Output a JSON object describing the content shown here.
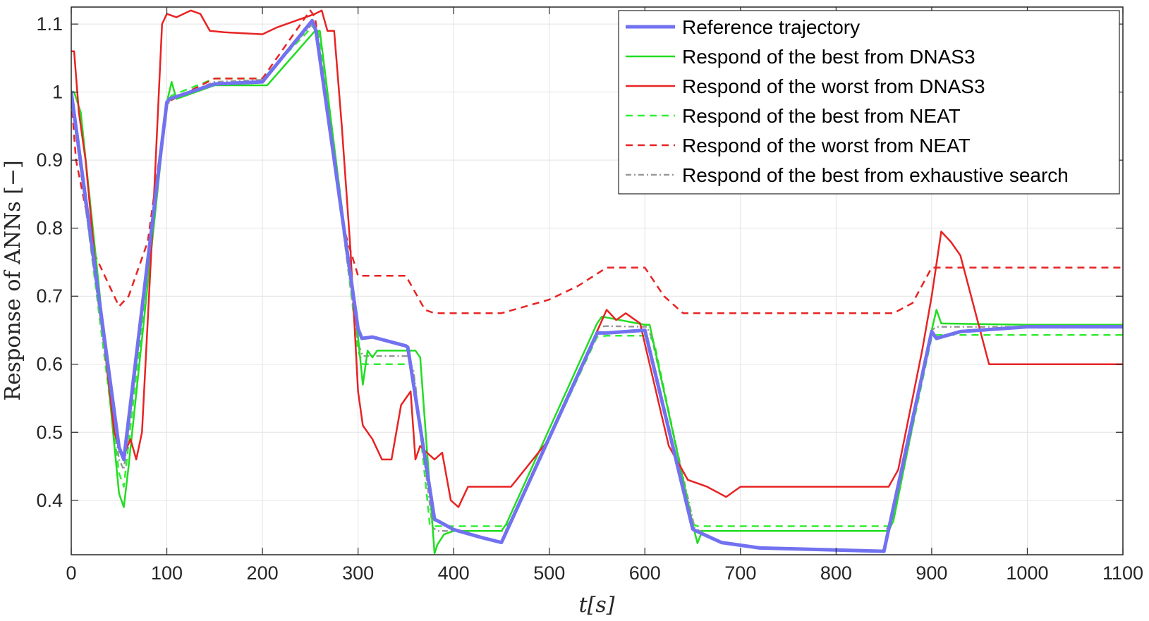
{
  "chart_data": {
    "type": "line",
    "xlabel": "t[s]",
    "ylabel": "Response of ANNs [−]",
    "xlim": [
      0,
      1100
    ],
    "ylim": [
      0.32,
      1.125
    ],
    "xticks": [
      0,
      100,
      200,
      300,
      400,
      500,
      600,
      700,
      800,
      900,
      1000,
      1100
    ],
    "yticks": [
      0.4,
      0.5,
      0.6,
      0.7,
      0.8,
      0.9,
      1,
      1.1
    ],
    "grid": true,
    "legend_position": "top-right",
    "series": [
      {
        "name": "Reference trajectory",
        "color": "#7272f0",
        "dash": "solid",
        "width": 5,
        "x": [
          0,
          50,
          55,
          100,
          103,
          150,
          200,
          252,
          256,
          300,
          304,
          315,
          350,
          352,
          380,
          383,
          400,
          430,
          450,
          550,
          560,
          600,
          650,
          652,
          680,
          720,
          800,
          850,
          900,
          905,
          930,
          1000,
          1100
        ],
        "y": [
          1.0,
          0.478,
          0.46,
          0.985,
          0.99,
          1.012,
          1.015,
          1.105,
          1.09,
          0.652,
          0.638,
          0.64,
          0.627,
          0.625,
          0.372,
          0.37,
          0.357,
          0.345,
          0.338,
          0.646,
          0.646,
          0.65,
          0.358,
          0.356,
          0.338,
          0.33,
          0.327,
          0.325,
          0.648,
          0.638,
          0.648,
          0.655,
          0.655
        ]
      },
      {
        "name": "Respond of the best from DNAS3",
        "color": "#22dd22",
        "dash": "solid",
        "width": 2.5,
        "x": [
          0,
          3,
          10,
          30,
          50,
          55,
          60,
          100,
          105,
          110,
          150,
          200,
          205,
          255,
          260,
          300,
          305,
          310,
          315,
          320,
          360,
          365,
          380,
          383,
          390,
          400,
          450,
          455,
          550,
          555,
          600,
          605,
          650,
          655,
          660,
          680,
          855,
          860,
          900,
          905,
          910,
          1000,
          1100
        ],
        "y": [
          1.0,
          1.0,
          0.97,
          0.7,
          0.41,
          0.39,
          0.45,
          0.985,
          1.015,
          0.99,
          1.01,
          1.01,
          1.01,
          1.09,
          1.09,
          0.64,
          0.57,
          0.62,
          0.61,
          0.62,
          0.62,
          0.61,
          0.322,
          0.335,
          0.35,
          0.355,
          0.355,
          0.365,
          0.66,
          0.67,
          0.658,
          0.658,
          0.365,
          0.337,
          0.355,
          0.355,
          0.355,
          0.37,
          0.65,
          0.68,
          0.66,
          0.658,
          0.658
        ]
      },
      {
        "name": "Respond of the worst from DNAS3",
        "color": "#e82323",
        "dash": "solid",
        "width": 2.5,
        "x": [
          0,
          3,
          8,
          15,
          25,
          45,
          52,
          56,
          62,
          68,
          74,
          85,
          95,
          100,
          110,
          125,
          135,
          145,
          160,
          200,
          215,
          235,
          255,
          262,
          268,
          275,
          283,
          292,
          300,
          305,
          315,
          325,
          335,
          345,
          355,
          360,
          365,
          372,
          380,
          388,
          397,
          405,
          415,
          460,
          500,
          560,
          570,
          580,
          595,
          605,
          625,
          645,
          665,
          685,
          700,
          855,
          865,
          890,
          900,
          910,
          920,
          930,
          945,
          960,
          1100
        ],
        "y": [
          1.06,
          1.06,
          0.97,
          0.9,
          0.75,
          0.5,
          0.47,
          0.47,
          0.49,
          0.46,
          0.5,
          0.8,
          1.1,
          1.115,
          1.11,
          1.12,
          1.115,
          1.09,
          1.088,
          1.085,
          1.095,
          1.105,
          1.115,
          1.12,
          1.09,
          1.09,
          0.95,
          0.77,
          0.56,
          0.51,
          0.49,
          0.46,
          0.46,
          0.54,
          0.56,
          0.46,
          0.48,
          0.47,
          0.46,
          0.47,
          0.4,
          0.39,
          0.42,
          0.42,
          0.49,
          0.68,
          0.665,
          0.675,
          0.66,
          0.6,
          0.48,
          0.43,
          0.42,
          0.405,
          0.42,
          0.42,
          0.445,
          0.62,
          0.7,
          0.795,
          0.78,
          0.76,
          0.68,
          0.6,
          0.6
        ]
      },
      {
        "name": "Respond of the best from NEAT",
        "color": "#33ee33",
        "dash": "dashed",
        "width": 2.5,
        "x": [
          0,
          50,
          55,
          100,
          105,
          150,
          200,
          255,
          260,
          300,
          305,
          355,
          360,
          375,
          380,
          455,
          460,
          550,
          560,
          605,
          610,
          650,
          655,
          855,
          860,
          900,
          905,
          1100
        ],
        "y": [
          1.0,
          0.44,
          0.42,
          0.985,
          0.995,
          1.02,
          1.02,
          1.1,
          1.08,
          0.62,
          0.6,
          0.6,
          0.57,
          0.365,
          0.362,
          0.362,
          0.37,
          0.64,
          0.642,
          0.642,
          0.63,
          0.365,
          0.362,
          0.362,
          0.375,
          0.64,
          0.643,
          0.643
        ]
      },
      {
        "name": "Respond of the worst from NEAT",
        "color": "#e82323",
        "dash": "dashed",
        "width": 2.5,
        "x": [
          0,
          5,
          25,
          50,
          60,
          80,
          100,
          150,
          200,
          250,
          255,
          285,
          300,
          350,
          370,
          380,
          450,
          500,
          530,
          560,
          600,
          620,
          640,
          700,
          860,
          880,
          900,
          1100
        ],
        "y": [
          0.99,
          0.9,
          0.76,
          0.685,
          0.7,
          0.78,
          0.985,
          1.02,
          1.02,
          1.12,
          1.11,
          0.8,
          0.73,
          0.73,
          0.68,
          0.675,
          0.675,
          0.695,
          0.715,
          0.742,
          0.742,
          0.7,
          0.675,
          0.675,
          0.675,
          0.69,
          0.742,
          0.742
        ]
      },
      {
        "name": "Respond of the best from exhaustive search",
        "color": "#999999",
        "dash": "dashdot",
        "width": 2.5,
        "x": [
          0,
          50,
          55,
          100,
          105,
          150,
          200,
          252,
          258,
          300,
          305,
          352,
          358,
          378,
          383,
          452,
          458,
          552,
          560,
          602,
          607,
          652,
          657,
          852,
          858,
          900,
          905,
          1100
        ],
        "y": [
          0.99,
          0.46,
          0.445,
          0.98,
          0.99,
          1.015,
          1.018,
          1.1,
          1.08,
          0.63,
          0.612,
          0.612,
          0.59,
          0.36,
          0.355,
          0.355,
          0.36,
          0.655,
          0.656,
          0.655,
          0.64,
          0.36,
          0.355,
          0.355,
          0.37,
          0.65,
          0.655,
          0.655
        ]
      }
    ]
  }
}
